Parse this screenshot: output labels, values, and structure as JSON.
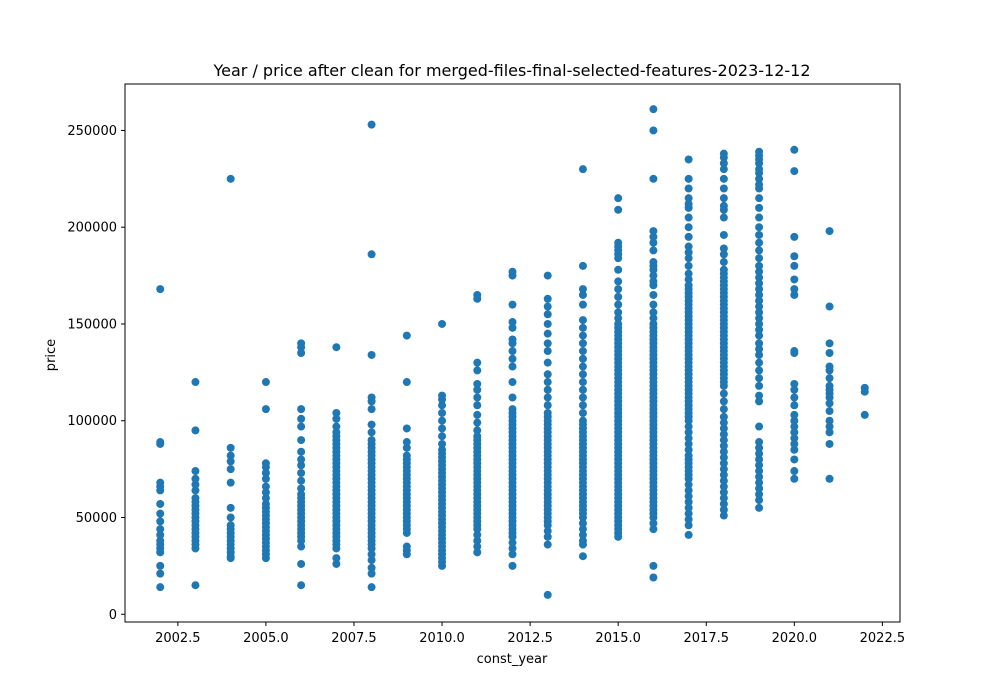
{
  "chart_data": {
    "type": "scatter",
    "title": "Year / price after clean for merged-files-final-selected-features-2023-12-12",
    "xlabel": "const_year",
    "ylabel": "price",
    "xlim": [
      2001,
      2023
    ],
    "ylim": [
      -4000,
      274000
    ],
    "xticks": [
      2002.5,
      2005.0,
      2007.5,
      2010.0,
      2012.5,
      2015.0,
      2017.5,
      2020.0,
      2022.5
    ],
    "xtick_labels": [
      "2002.5",
      "2005.0",
      "2007.5",
      "2010.0",
      "2012.5",
      "2015.0",
      "2017.5",
      "2020.0",
      "2022.5"
    ],
    "yticks": [
      0,
      50000,
      100000,
      150000,
      200000,
      250000
    ],
    "ytick_labels": [
      "0",
      "50000",
      "100000",
      "150000",
      "200000",
      "250000"
    ],
    "grid": false,
    "marker_color": "#1f77b4",
    "points": [
      {
        "year": 2002,
        "prices": [
          14000,
          21000,
          25000,
          32000,
          34000,
          36000,
          38000,
          41000,
          44000,
          48000,
          52000,
          57000,
          64000,
          66000,
          68000,
          88000,
          89000,
          168000
        ]
      },
      {
        "year": 2003,
        "prices": [
          15000,
          34000,
          36000,
          38000,
          40000,
          42000,
          44000,
          46000,
          48000,
          50000,
          52000,
          54000,
          56000,
          58000,
          60000,
          64000,
          67000,
          70000,
          74000,
          95000,
          120000
        ]
      },
      {
        "year": 2004,
        "prices": [
          29000,
          30000,
          32000,
          34000,
          36000,
          38000,
          40000,
          42000,
          44000,
          46000,
          50000,
          55000,
          68000,
          75000,
          79000,
          82000,
          86000,
          225000
        ]
      },
      {
        "year": 2005,
        "prices": [
          29000,
          31000,
          33000,
          35000,
          37000,
          39000,
          41000,
          43000,
          45000,
          47000,
          49000,
          51000,
          53000,
          55000,
          57000,
          60000,
          63000,
          66000,
          70000,
          73000,
          76000,
          78000,
          106000,
          120000
        ]
      },
      {
        "year": 2006,
        "prices": [
          15000,
          26000,
          35000,
          38000,
          40000,
          42000,
          44000,
          46000,
          48000,
          50000,
          52000,
          54000,
          56000,
          58000,
          60000,
          62000,
          65000,
          69000,
          73000,
          77000,
          80000,
          84000,
          90000,
          97000,
          101000,
          106000,
          135000,
          138000,
          140000
        ]
      },
      {
        "year": 2007,
        "prices": [
          26000,
          29000,
          34000,
          36000,
          38000,
          40000,
          42000,
          44000,
          46000,
          48000,
          50000,
          52000,
          54000,
          56000,
          58000,
          60000,
          62000,
          64000,
          66000,
          68000,
          70000,
          72000,
          74000,
          76000,
          78000,
          80000,
          82000,
          84000,
          86000,
          88000,
          90000,
          92000,
          94000,
          97000,
          101000,
          104000,
          138000
        ]
      },
      {
        "year": 2008,
        "prices": [
          14000,
          21000,
          24000,
          28000,
          31000,
          34000,
          36000,
          38000,
          40000,
          42000,
          44000,
          46000,
          48000,
          50000,
          52000,
          54000,
          56000,
          58000,
          60000,
          62000,
          64000,
          66000,
          68000,
          70000,
          72000,
          74000,
          76000,
          78000,
          80000,
          82000,
          84000,
          86000,
          88000,
          90000,
          94000,
          98000,
          106000,
          110000,
          112000,
          134000,
          186000,
          253000
        ]
      },
      {
        "year": 2009,
        "prices": [
          31000,
          33000,
          35000,
          42000,
          44000,
          46000,
          48000,
          50000,
          52000,
          54000,
          56000,
          58000,
          60000,
          62000,
          64000,
          66000,
          68000,
          70000,
          72000,
          74000,
          76000,
          78000,
          80000,
          82000,
          86000,
          89000,
          96000,
          120000,
          144000
        ]
      },
      {
        "year": 2010,
        "prices": [
          25000,
          27000,
          29000,
          31000,
          33000,
          35000,
          37000,
          39000,
          41000,
          43000,
          45000,
          47000,
          49000,
          51000,
          53000,
          55000,
          57000,
          59000,
          61000,
          63000,
          65000,
          67000,
          69000,
          71000,
          73000,
          75000,
          77000,
          79000,
          81000,
          83000,
          85000,
          88000,
          92000,
          96000,
          100000,
          104000,
          108000,
          111000,
          113000,
          150000
        ]
      },
      {
        "year": 2011,
        "prices": [
          32000,
          35000,
          38000,
          41000,
          44000,
          46000,
          48000,
          50000,
          52000,
          54000,
          56000,
          58000,
          60000,
          62000,
          64000,
          66000,
          68000,
          70000,
          72000,
          74000,
          76000,
          78000,
          80000,
          82000,
          84000,
          86000,
          88000,
          90000,
          92000,
          95000,
          99000,
          103000,
          108000,
          112000,
          116000,
          119000,
          126000,
          130000,
          163000,
          165000
        ]
      },
      {
        "year": 2012,
        "prices": [
          25000,
          31000,
          34000,
          37000,
          40000,
          42000,
          44000,
          46000,
          48000,
          50000,
          52000,
          54000,
          56000,
          58000,
          60000,
          62000,
          64000,
          66000,
          68000,
          70000,
          72000,
          74000,
          76000,
          78000,
          80000,
          82000,
          84000,
          86000,
          88000,
          90000,
          92000,
          94000,
          96000,
          98000,
          100000,
          102000,
          104000,
          106000,
          112000,
          120000,
          128000,
          132000,
          136000,
          140000,
          142000,
          148000,
          151000,
          160000,
          175000,
          177000
        ]
      },
      {
        "year": 2013,
        "prices": [
          10000,
          36000,
          40000,
          43000,
          46000,
          48000,
          50000,
          52000,
          54000,
          56000,
          58000,
          60000,
          62000,
          64000,
          66000,
          68000,
          70000,
          72000,
          74000,
          76000,
          78000,
          80000,
          82000,
          84000,
          86000,
          88000,
          90000,
          92000,
          94000,
          96000,
          98000,
          100000,
          102000,
          104000,
          108000,
          112000,
          116000,
          120000,
          124000,
          130000,
          136000,
          140000,
          145000,
          150000,
          155000,
          159000,
          163000,
          175000
        ]
      },
      {
        "year": 2014,
        "prices": [
          30000,
          36000,
          38000,
          41000,
          44000,
          47000,
          50000,
          52000,
          54000,
          56000,
          58000,
          60000,
          62000,
          64000,
          66000,
          68000,
          70000,
          72000,
          74000,
          76000,
          78000,
          80000,
          82000,
          84000,
          86000,
          88000,
          90000,
          92000,
          94000,
          96000,
          98000,
          100000,
          104000,
          108000,
          112000,
          116000,
          120000,
          124000,
          128000,
          132000,
          136000,
          140000,
          144000,
          148000,
          152000,
          160000,
          165000,
          168000,
          180000,
          230000
        ]
      },
      {
        "year": 2015,
        "prices": [
          40000,
          42000,
          44000,
          46000,
          48000,
          50000,
          52000,
          54000,
          56000,
          58000,
          60000,
          62000,
          64000,
          66000,
          68000,
          70000,
          72000,
          74000,
          76000,
          78000,
          80000,
          82000,
          84000,
          86000,
          88000,
          90000,
          92000,
          94000,
          96000,
          98000,
          100000,
          102000,
          104000,
          106000,
          108000,
          110000,
          112000,
          114000,
          116000,
          118000,
          120000,
          122000,
          124000,
          126000,
          128000,
          130000,
          132000,
          134000,
          136000,
          138000,
          140000,
          142000,
          144000,
          146000,
          148000,
          150000,
          153000,
          156000,
          160000,
          164000,
          168000,
          172000,
          178000,
          184000,
          186000,
          188000,
          190000,
          192000,
          209000,
          215000
        ]
      },
      {
        "year": 2016,
        "prices": [
          19000,
          25000,
          44000,
          47000,
          50000,
          52000,
          54000,
          56000,
          58000,
          60000,
          62000,
          64000,
          66000,
          68000,
          70000,
          72000,
          74000,
          76000,
          78000,
          80000,
          82000,
          84000,
          86000,
          88000,
          90000,
          92000,
          94000,
          96000,
          98000,
          100000,
          102000,
          104000,
          106000,
          108000,
          110000,
          112000,
          114000,
          116000,
          118000,
          120000,
          122000,
          124000,
          126000,
          128000,
          130000,
          132000,
          134000,
          136000,
          138000,
          140000,
          142000,
          144000,
          146000,
          148000,
          150000,
          153000,
          156000,
          160000,
          165000,
          170000,
          172000,
          175000,
          178000,
          180000,
          182000,
          188000,
          192000,
          195000,
          198000,
          225000,
          250000,
          261000
        ]
      },
      {
        "year": 2017,
        "prices": [
          41000,
          46000,
          49000,
          52000,
          55000,
          58000,
          61000,
          64000,
          67000,
          70000,
          72000,
          74000,
          76000,
          78000,
          80000,
          82000,
          85000,
          88000,
          91000,
          94000,
          97000,
          100000,
          102000,
          104000,
          106000,
          108000,
          110000,
          112000,
          114000,
          116000,
          118000,
          120000,
          122000,
          124000,
          126000,
          128000,
          130000,
          132000,
          134000,
          136000,
          138000,
          140000,
          142000,
          144000,
          146000,
          148000,
          150000,
          152000,
          154000,
          156000,
          158000,
          160000,
          162000,
          164000,
          166000,
          168000,
          170000,
          173000,
          176000,
          180000,
          184000,
          187000,
          190000,
          195000,
          200000,
          205000,
          210000,
          212000,
          215000,
          220000,
          225000,
          235000
        ]
      },
      {
        "year": 2018,
        "prices": [
          51000,
          54000,
          57000,
          60000,
          63000,
          66000,
          69000,
          72000,
          75000,
          78000,
          81000,
          84000,
          87000,
          90000,
          93000,
          96000,
          99000,
          102000,
          106000,
          110000,
          114000,
          118000,
          120000,
          122000,
          124000,
          126000,
          128000,
          130000,
          132000,
          134000,
          136000,
          138000,
          140000,
          142000,
          144000,
          146000,
          148000,
          150000,
          152000,
          154000,
          156000,
          158000,
          160000,
          162000,
          164000,
          166000,
          168000,
          170000,
          172000,
          174000,
          176000,
          178000,
          182000,
          186000,
          189000,
          196000,
          205000,
          209000,
          211000,
          215000,
          220000,
          225000,
          230000,
          233000,
          236000,
          238000
        ]
      },
      {
        "year": 2019,
        "prices": [
          55000,
          59000,
          62000,
          65000,
          68000,
          71000,
          74000,
          77000,
          80000,
          83000,
          86000,
          89000,
          97000,
          110000,
          113000,
          118000,
          122000,
          126000,
          130000,
          134000,
          137000,
          140000,
          144000,
          147000,
          150000,
          153000,
          156000,
          159000,
          162000,
          165000,
          168000,
          171000,
          174000,
          177000,
          180000,
          184000,
          188000,
          192000,
          196000,
          200000,
          205000,
          210000,
          215000,
          220000,
          222000,
          225000,
          228000,
          230000,
          233000,
          235000,
          237000,
          239000
        ]
      },
      {
        "year": 2020,
        "prices": [
          70000,
          74000,
          80000,
          85000,
          88000,
          91000,
          94000,
          97000,
          100000,
          103000,
          108000,
          112000,
          116000,
          119000,
          135000,
          136000,
          165000,
          168000,
          173000,
          180000,
          185000,
          195000,
          229000,
          240000
        ]
      },
      {
        "year": 2021,
        "prices": [
          70000,
          88000,
          94000,
          97000,
          100000,
          105000,
          109000,
          112000,
          114000,
          116000,
          118000,
          122000,
          126000,
          128000,
          135000,
          140000,
          159000,
          198000
        ]
      },
      {
        "year": 2022,
        "prices": [
          103000,
          115000,
          117000
        ]
      }
    ]
  }
}
